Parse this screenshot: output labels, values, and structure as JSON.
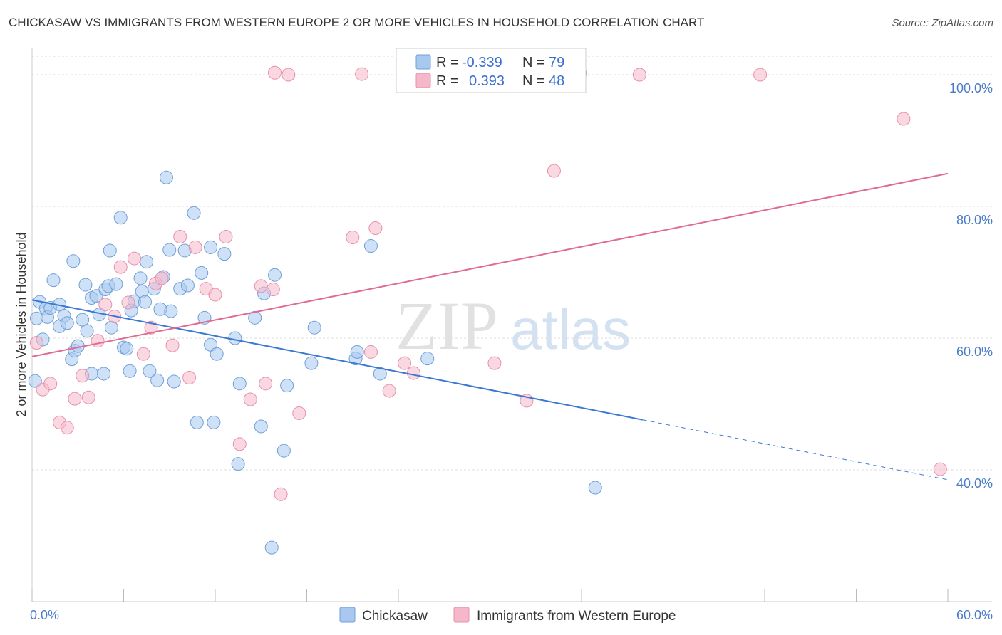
{
  "title": "CHICKASAW VS IMMIGRANTS FROM WESTERN EUROPE 2 OR MORE VEHICLES IN HOUSEHOLD CORRELATION CHART",
  "source": "Source: ZipAtlas.com",
  "watermark": {
    "zip": "ZIP",
    "atlas": "atlas"
  },
  "legend_top": [
    {
      "r_label": "R =",
      "r_value": "-0.339",
      "n_label": "N =",
      "n_value": "79",
      "color": "#a8c8f0"
    },
    {
      "r_label": "R =",
      "r_value": "0.393",
      "n_label": "N =",
      "n_value": "48",
      "color": "#f5b8cb"
    }
  ],
  "chart_data": {
    "type": "scatter",
    "title": "CHICKASAW VS IMMIGRANTS FROM WESTERN EUROPE 2 OR MORE VEHICLES IN HOUSEHOLD CORRELATION CHART",
    "xlabel": "",
    "ylabel": "2 or more Vehicles in Household",
    "xlim": [
      0,
      60
    ],
    "ylim": [
      20,
      104
    ],
    "x_tick_labels": [
      "0.0%",
      "60.0%"
    ],
    "y_ticks": [
      40,
      60,
      80,
      100
    ],
    "y_tick_labels": [
      "40.0%",
      "60.0%",
      "80.0%",
      "100.0%"
    ],
    "grid": true,
    "legend_position": "top-center",
    "series": [
      {
        "name": "Chickasaw",
        "color": "#a8c8f0",
        "stroke": "#6f9fd8",
        "trend": {
          "x": [
            0,
            40
          ],
          "y": [
            65.8,
            47.6
          ],
          "dashed_to_x": 60,
          "dashed_to_y": 38.5,
          "color": "#3a78d4"
        },
        "points": [
          [
            0.2,
            53.5
          ],
          [
            0.3,
            63
          ],
          [
            0.5,
            65.5
          ],
          [
            0.7,
            59.8
          ],
          [
            0.9,
            64.5
          ],
          [
            1.0,
            63.2
          ],
          [
            1.2,
            64.6
          ],
          [
            1.4,
            68.8
          ],
          [
            1.8,
            65.1
          ],
          [
            1.8,
            61.8
          ],
          [
            2.1,
            63.4
          ],
          [
            2.3,
            62.3
          ],
          [
            2.6,
            56.8
          ],
          [
            2.7,
            71.7
          ],
          [
            2.8,
            58.1
          ],
          [
            3.0,
            58.8
          ],
          [
            3.3,
            62.8
          ],
          [
            3.5,
            68.1
          ],
          [
            3.6,
            61.1
          ],
          [
            3.9,
            54.6
          ],
          [
            3.9,
            66.1
          ],
          [
            4.2,
            66.4
          ],
          [
            4.4,
            63.6
          ],
          [
            4.7,
            54.6
          ],
          [
            4.8,
            67.4
          ],
          [
            5.0,
            67.9
          ],
          [
            5.1,
            73.3
          ],
          [
            5.2,
            61.6
          ],
          [
            5.5,
            68.2
          ],
          [
            5.8,
            78.3
          ],
          [
            6.0,
            58.6
          ],
          [
            6.2,
            58.4
          ],
          [
            6.4,
            55.0
          ],
          [
            6.5,
            64.2
          ],
          [
            6.7,
            65.6
          ],
          [
            7.1,
            69.1
          ],
          [
            7.2,
            67.1
          ],
          [
            7.4,
            65.5
          ],
          [
            7.5,
            71.6
          ],
          [
            7.7,
            55.0
          ],
          [
            8.0,
            67.5
          ],
          [
            8.2,
            53.6
          ],
          [
            8.4,
            64.4
          ],
          [
            8.6,
            69.3
          ],
          [
            8.8,
            84.4
          ],
          [
            9.0,
            73.4
          ],
          [
            9.1,
            64.1
          ],
          [
            9.3,
            53.4
          ],
          [
            9.7,
            67.5
          ],
          [
            10.0,
            73.3
          ],
          [
            10.2,
            68.0
          ],
          [
            10.6,
            79.0
          ],
          [
            10.8,
            47.2
          ],
          [
            11.1,
            69.9
          ],
          [
            11.3,
            63.1
          ],
          [
            11.7,
            73.8
          ],
          [
            11.7,
            59.0
          ],
          [
            11.9,
            47.2
          ],
          [
            12.1,
            57.6
          ],
          [
            12.6,
            72.8
          ],
          [
            13.3,
            60.0
          ],
          [
            13.5,
            40.9
          ],
          [
            13.6,
            53.1
          ],
          [
            14.6,
            63.1
          ],
          [
            15.0,
            46.6
          ],
          [
            15.2,
            66.8
          ],
          [
            15.9,
            69.6
          ],
          [
            15.7,
            28.2
          ],
          [
            16.5,
            42.9
          ],
          [
            16.7,
            52.8
          ],
          [
            18.3,
            56.2
          ],
          [
            18.5,
            61.6
          ],
          [
            21.2,
            56.9
          ],
          [
            21.3,
            57.9
          ],
          [
            22.2,
            74.0
          ],
          [
            22.8,
            54.6
          ],
          [
            25.9,
            56.9
          ],
          [
            36.9,
            37.3
          ],
          [
            35.9,
            100.2
          ]
        ]
      },
      {
        "name": "Immigrants from Western Europe",
        "color": "#f5b8cb",
        "stroke": "#e88fab",
        "trend": {
          "x": [
            0,
            60
          ],
          "y": [
            57.2,
            85.0
          ],
          "color": "#e06a93"
        },
        "points": [
          [
            0.3,
            59.3
          ],
          [
            0.7,
            52.2
          ],
          [
            1.2,
            53.1
          ],
          [
            1.8,
            47.2
          ],
          [
            2.3,
            46.4
          ],
          [
            2.8,
            50.8
          ],
          [
            3.3,
            54.3
          ],
          [
            3.7,
            51.0
          ],
          [
            4.3,
            59.6
          ],
          [
            4.8,
            65.1
          ],
          [
            5.4,
            63.3
          ],
          [
            5.8,
            70.8
          ],
          [
            6.3,
            65.4
          ],
          [
            6.7,
            72.1
          ],
          [
            7.3,
            57.6
          ],
          [
            7.8,
            61.6
          ],
          [
            8.1,
            68.3
          ],
          [
            8.5,
            69.1
          ],
          [
            9.2,
            58.9
          ],
          [
            9.7,
            75.4
          ],
          [
            10.3,
            54.0
          ],
          [
            10.7,
            73.8
          ],
          [
            11.4,
            67.5
          ],
          [
            12.0,
            66.6
          ],
          [
            12.7,
            75.4
          ],
          [
            13.6,
            43.9
          ],
          [
            14.3,
            50.7
          ],
          [
            15.0,
            67.9
          ],
          [
            15.3,
            53.1
          ],
          [
            15.8,
            67.4
          ],
          [
            16.3,
            36.3
          ],
          [
            16.8,
            100.0
          ],
          [
            17.5,
            48.6
          ],
          [
            21.0,
            75.3
          ],
          [
            22.2,
            57.9
          ],
          [
            22.5,
            76.7
          ],
          [
            23.4,
            52.0
          ],
          [
            24.4,
            56.2
          ],
          [
            25.0,
            54.7
          ],
          [
            30.3,
            56.2
          ],
          [
            32.4,
            50.5
          ],
          [
            34.2,
            85.4
          ],
          [
            39.8,
            100.0
          ],
          [
            47.7,
            100.0
          ],
          [
            57.1,
            93.3
          ],
          [
            59.5,
            40.1
          ],
          [
            15.9,
            100.3
          ],
          [
            21.6,
            100.1
          ]
        ]
      }
    ]
  },
  "bottom_legend": [
    {
      "label": "Chickasaw",
      "color": "#a8c8f0"
    },
    {
      "label": "Immigrants from Western Europe",
      "color": "#f5b8cb"
    }
  ]
}
